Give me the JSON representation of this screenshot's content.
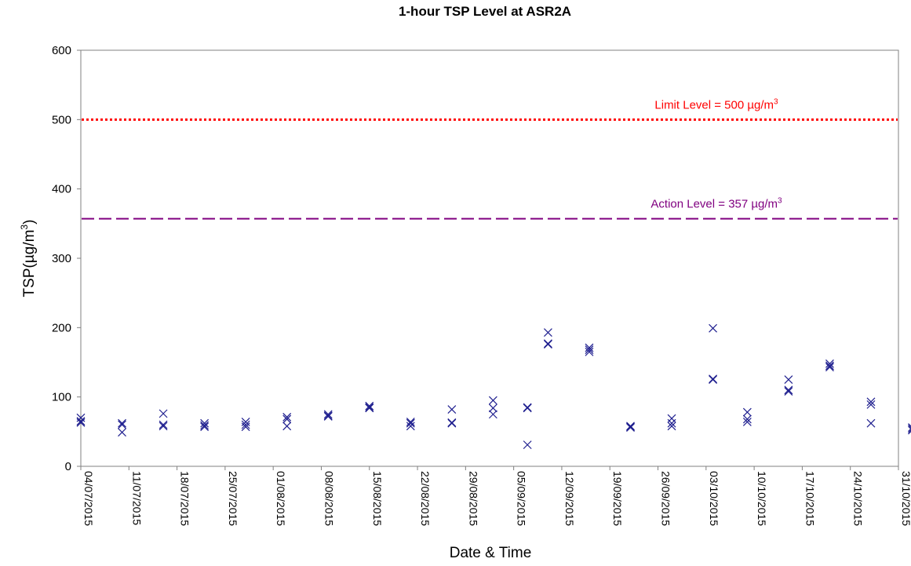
{
  "chart_data": {
    "type": "scatter",
    "title": "1-hour TSP Level at ASR2A",
    "xlabel": "Date & Time",
    "ylabel": "TSP(µg/m",
    "ylabel_sup": "3",
    "ylabel_tail": ")",
    "ylim": [
      0,
      600
    ],
    "yticks": [
      0,
      100,
      200,
      300,
      400,
      500,
      600
    ],
    "xlim": [
      "2015-07-04",
      "2015-10-31"
    ],
    "xticks": [
      "04/07/2015",
      "11/07/2015",
      "18/07/2015",
      "25/07/2015",
      "01/08/2015",
      "08/08/2015",
      "15/08/2015",
      "22/08/2015",
      "29/08/2015",
      "05/09/2015",
      "12/09/2015",
      "19/09/2015",
      "26/09/2015",
      "03/10/2015",
      "10/10/2015",
      "17/10/2015",
      "24/10/2015",
      "31/10/2015"
    ],
    "grid": false,
    "marker_color": "#1f1f8f",
    "reference_lines": [
      {
        "label": "Limit Level = 500 µg/m",
        "sup": "3",
        "value": 500,
        "color": "#ff0000",
        "style": "dotted"
      },
      {
        "label": "Action Level = 357 µg/m",
        "sup": "3",
        "value": 357,
        "color": "#800080",
        "style": "dashed"
      }
    ],
    "series": [
      {
        "points": [
          {
            "x": "2015-07-04",
            "y": 70
          },
          {
            "x": "2015-07-04",
            "y": 65
          },
          {
            "x": "2015-07-04",
            "y": 63
          },
          {
            "x": "2015-07-10",
            "y": 62
          },
          {
            "x": "2015-07-10",
            "y": 60
          },
          {
            "x": "2015-07-10",
            "y": 49
          },
          {
            "x": "2015-07-16",
            "y": 76
          },
          {
            "x": "2015-07-16",
            "y": 60
          },
          {
            "x": "2015-07-16",
            "y": 58
          },
          {
            "x": "2015-07-22",
            "y": 62
          },
          {
            "x": "2015-07-22",
            "y": 59
          },
          {
            "x": "2015-07-22",
            "y": 57
          },
          {
            "x": "2015-07-28",
            "y": 64
          },
          {
            "x": "2015-07-28",
            "y": 60
          },
          {
            "x": "2015-07-28",
            "y": 57
          },
          {
            "x": "2015-08-03",
            "y": 71
          },
          {
            "x": "2015-08-03",
            "y": 68
          },
          {
            "x": "2015-08-03",
            "y": 58
          },
          {
            "x": "2015-08-09",
            "y": 75
          },
          {
            "x": "2015-08-09",
            "y": 73
          },
          {
            "x": "2015-08-09",
            "y": 72
          },
          {
            "x": "2015-08-15",
            "y": 87
          },
          {
            "x": "2015-08-15",
            "y": 85
          },
          {
            "x": "2015-08-15",
            "y": 84
          },
          {
            "x": "2015-08-21",
            "y": 64
          },
          {
            "x": "2015-08-21",
            "y": 62
          },
          {
            "x": "2015-08-21",
            "y": 58
          },
          {
            "x": "2015-08-27",
            "y": 82
          },
          {
            "x": "2015-08-27",
            "y": 63
          },
          {
            "x": "2015-08-27",
            "y": 62
          },
          {
            "x": "2015-09-02",
            "y": 95
          },
          {
            "x": "2015-09-02",
            "y": 84
          },
          {
            "x": "2015-09-02",
            "y": 75
          },
          {
            "x": "2015-09-07",
            "y": 85
          },
          {
            "x": "2015-09-07",
            "y": 84
          },
          {
            "x": "2015-09-07",
            "y": 31
          },
          {
            "x": "2015-09-10",
            "y": 193
          },
          {
            "x": "2015-09-10",
            "y": 177
          },
          {
            "x": "2015-09-10",
            "y": 176
          },
          {
            "x": "2015-09-16",
            "y": 171
          },
          {
            "x": "2015-09-16",
            "y": 168
          },
          {
            "x": "2015-09-16",
            "y": 165
          },
          {
            "x": "2015-09-22",
            "y": 58
          },
          {
            "x": "2015-09-22",
            "y": 57
          },
          {
            "x": "2015-09-22",
            "y": 56
          },
          {
            "x": "2015-09-28",
            "y": 69
          },
          {
            "x": "2015-09-28",
            "y": 62
          },
          {
            "x": "2015-09-28",
            "y": 58
          },
          {
            "x": "2015-10-04",
            "y": 199
          },
          {
            "x": "2015-10-04",
            "y": 126
          },
          {
            "x": "2015-10-04",
            "y": 125
          },
          {
            "x": "2015-10-09",
            "y": 78
          },
          {
            "x": "2015-10-09",
            "y": 68
          },
          {
            "x": "2015-10-09",
            "y": 64
          },
          {
            "x": "2015-10-15",
            "y": 125
          },
          {
            "x": "2015-10-15",
            "y": 110
          },
          {
            "x": "2015-10-15",
            "y": 108
          },
          {
            "x": "2015-10-21",
            "y": 148
          },
          {
            "x": "2015-10-21",
            "y": 145
          },
          {
            "x": "2015-10-21",
            "y": 143
          },
          {
            "x": "2015-10-27",
            "y": 93
          },
          {
            "x": "2015-10-27",
            "y": 89
          },
          {
            "x": "2015-10-27",
            "y": 62
          },
          {
            "x": "2015-11-02",
            "y": 56
          },
          {
            "x": "2015-11-02",
            "y": 54
          },
          {
            "x": "2015-11-02",
            "y": 52
          }
        ]
      }
    ]
  }
}
